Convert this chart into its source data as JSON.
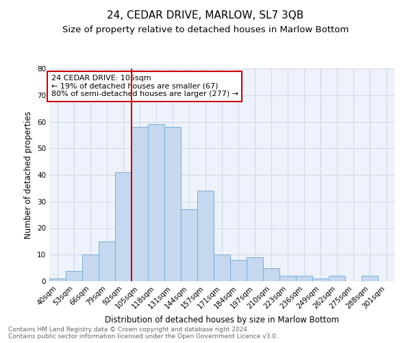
{
  "title": "24, CEDAR DRIVE, MARLOW, SL7 3QB",
  "subtitle": "Size of property relative to detached houses in Marlow Bottom",
  "xlabel": "Distribution of detached houses by size in Marlow Bottom",
  "ylabel": "Number of detached properties",
  "categories": [
    "40sqm",
    "53sqm",
    "66sqm",
    "79sqm",
    "92sqm",
    "105sqm",
    "118sqm",
    "131sqm",
    "144sqm",
    "157sqm",
    "171sqm",
    "184sqm",
    "197sqm",
    "210sqm",
    "223sqm",
    "236sqm",
    "249sqm",
    "262sqm",
    "275sqm",
    "288sqm",
    "301sqm"
  ],
  "values": [
    1,
    4,
    10,
    15,
    41,
    58,
    59,
    58,
    27,
    34,
    10,
    8,
    9,
    5,
    2,
    2,
    1,
    2,
    0,
    2,
    0
  ],
  "bar_color": "#c5d8f0",
  "bar_edge_color": "#7aaed6",
  "vline_index": 5,
  "vline_color": "#cc0000",
  "annotation_text": "24 CEDAR DRIVE: 105sqm\n← 19% of detached houses are smaller (67)\n80% of semi-detached houses are larger (277) →",
  "annotation_box_color": "#ffffff",
  "annotation_box_edge": "#cc0000",
  "ylim": [
    0,
    80
  ],
  "yticks": [
    0,
    10,
    20,
    30,
    40,
    50,
    60,
    70,
    80
  ],
  "grid_color": "#d0d8e8",
  "background_color": "#eef2fa",
  "footer_text": "Contains HM Land Registry data © Crown copyright and database right 2024.\nContains public sector information licensed under the Open Government Licence v3.0.",
  "title_fontsize": 11,
  "subtitle_fontsize": 9.5,
  "axis_label_fontsize": 8.5,
  "tick_fontsize": 7.5,
  "footer_fontsize": 6.5,
  "annotation_fontsize": 8
}
